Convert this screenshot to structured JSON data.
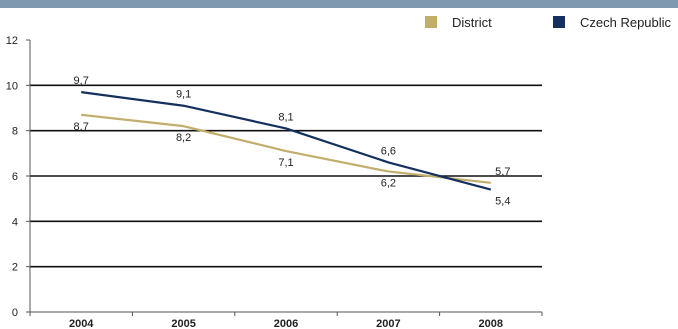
{
  "chart_data": {
    "type": "line",
    "categories": [
      "2004",
      "2005",
      "2006",
      "2007",
      "2008"
    ],
    "series": [
      {
        "name": "District",
        "color": "#c2ad6a",
        "values": [
          8.7,
          8.2,
          7.1,
          6.2,
          5.7
        ],
        "labels": [
          "8,7",
          "8,2",
          "7,1",
          "6,2",
          "5,7"
        ]
      },
      {
        "name": "Czech Republic",
        "color": "#14305e",
        "values": [
          9.7,
          9.1,
          8.1,
          6.6,
          5.4
        ],
        "labels": [
          "9,7",
          "9,1",
          "8,1",
          "6,6",
          "5,4"
        ]
      }
    ],
    "ylim": [
      0,
      12
    ],
    "yticks": [
      "0",
      "2",
      "4",
      "6",
      "8",
      "10",
      "12"
    ],
    "legend": "top-right",
    "grid": true
  }
}
